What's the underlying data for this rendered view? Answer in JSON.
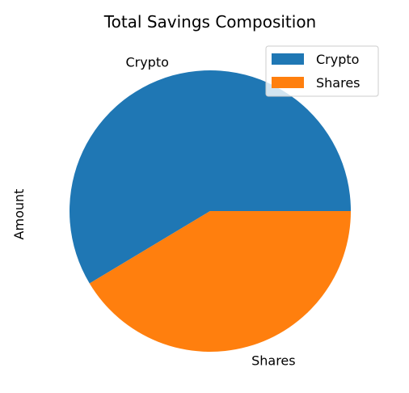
{
  "chart_data": {
    "type": "pie",
    "title": "Total Savings Composition",
    "ylabel": "Amount",
    "categories": [
      "Crypto",
      "Shares"
    ],
    "values": [
      58.6,
      41.4
    ],
    "colors": [
      "#1f77b4",
      "#ff7f0e"
    ],
    "start_angle_deg": 0,
    "direction": "counterclockwise",
    "legend": {
      "placement": "top-right",
      "entries": [
        "Crypto",
        "Shares"
      ]
    },
    "grid": false
  }
}
